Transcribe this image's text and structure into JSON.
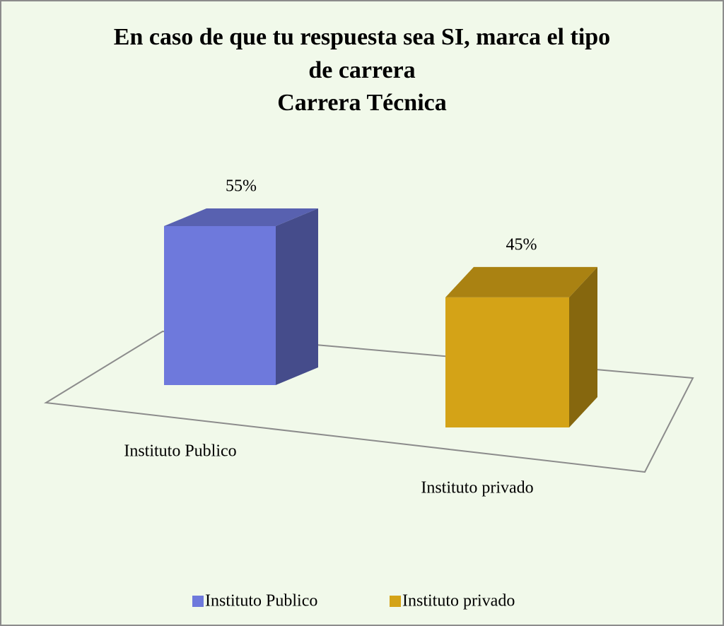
{
  "chart_data": {
    "type": "bar3d",
    "title": [
      "En caso de que tu respuesta sea SI, marca el tipo",
      "de carrera",
      "Carrera Técnica"
    ],
    "categories": [
      "Instituto Publico",
      "Instituto privado"
    ],
    "values": [
      55,
      45
    ],
    "value_labels": [
      "55%",
      "45%"
    ],
    "colors": [
      "#6e79dc",
      "#d4a317"
    ],
    "legend": "bottom"
  }
}
